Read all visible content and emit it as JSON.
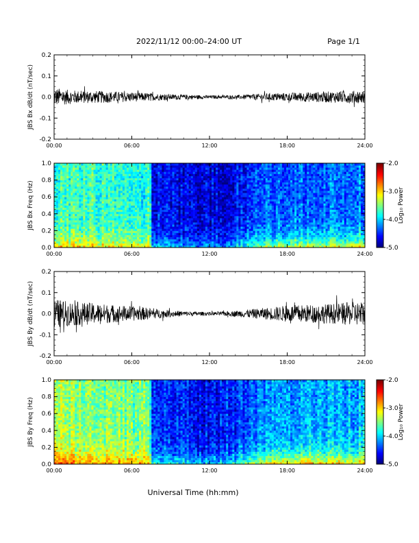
{
  "header": {
    "title": "2022/11/12  00:00–24:00 UT",
    "page": "Page 1/1"
  },
  "xlabel": "Universal Time (hh:mm)",
  "chart_data": [
    {
      "type": "line",
      "ylabel": "JBS Bx dB/dt (nT/sec)",
      "ylim": [
        -0.2,
        0.2
      ],
      "yticks": [
        "0.2",
        "0.1",
        "0.0",
        "-0.1",
        "-0.2"
      ],
      "xlim": [
        0,
        24
      ],
      "xticks": [
        "00:00",
        "06:00",
        "12:00",
        "18:00",
        "24:00"
      ],
      "x": [
        0,
        1,
        2,
        3,
        4,
        5,
        6,
        7,
        8,
        9,
        10,
        11,
        12,
        13,
        14,
        15,
        16,
        17,
        18,
        19,
        20,
        21,
        22,
        23,
        24
      ],
      "amplitude": [
        0.045,
        0.035,
        0.03,
        0.03,
        0.028,
        0.025,
        0.022,
        0.02,
        0.016,
        0.013,
        0.012,
        0.01,
        0.008,
        0.008,
        0.009,
        0.012,
        0.016,
        0.018,
        0.02,
        0.022,
        0.024,
        0.026,
        0.028,
        0.03,
        0.03
      ]
    },
    {
      "type": "heatmap",
      "ylabel": "JBS Bx Freq (Hz)",
      "ylim": [
        0.0,
        1.0
      ],
      "yticks": [
        "1.0",
        "0.8",
        "0.6",
        "0.4",
        "0.2",
        "0.0"
      ],
      "xlim": [
        0,
        24
      ],
      "xticks": [
        "00:00",
        "06:00",
        "12:00",
        "18:00",
        "24:00"
      ],
      "colorbar": {
        "label": "Log₁₀ Power",
        "range": [
          -5.0,
          -2.0
        ],
        "ticks": [
          "-2.0",
          "-3.0",
          "-4.0",
          "-5.0"
        ]
      },
      "x": [
        0,
        2,
        4,
        6,
        7.4,
        7.6,
        10,
        12,
        14,
        16,
        18,
        20,
        22,
        24
      ],
      "background_level": [
        -3.7,
        -3.7,
        -3.75,
        -3.75,
        -3.8,
        -4.6,
        -4.7,
        -4.75,
        -4.65,
        -4.4,
        -4.35,
        -4.3,
        -4.3,
        -4.3
      ],
      "low_freq_level": [
        -2.9,
        -3.0,
        -3.0,
        -3.0,
        -3.1,
        -3.9,
        -4.1,
        -4.2,
        -3.9,
        -3.4,
        -3.2,
        -3.1,
        -3.1,
        -3.0
      ]
    },
    {
      "type": "line",
      "ylabel": "JBS By dB/dt (nT/sec)",
      "ylim": [
        -0.2,
        0.2
      ],
      "yticks": [
        "0.2",
        "0.1",
        "0.0",
        "-0.1",
        "-0.2"
      ],
      "xlim": [
        0,
        24
      ],
      "xticks": [
        "00:00",
        "06:00",
        "12:00",
        "18:00",
        "24:00"
      ],
      "x": [
        0,
        1,
        2,
        3,
        4,
        5,
        6,
        7,
        8,
        9,
        10,
        11,
        12,
        13,
        14,
        15,
        16,
        17,
        18,
        19,
        20,
        21,
        22,
        23,
        24
      ],
      "amplitude": [
        0.07,
        0.06,
        0.055,
        0.05,
        0.045,
        0.04,
        0.035,
        0.03,
        0.022,
        0.016,
        0.012,
        0.01,
        0.008,
        0.01,
        0.014,
        0.02,
        0.026,
        0.032,
        0.04,
        0.042,
        0.044,
        0.046,
        0.05,
        0.055,
        0.06
      ]
    },
    {
      "type": "heatmap",
      "ylabel": "JBS By Freq (Hz)",
      "ylim": [
        0.0,
        1.0
      ],
      "yticks": [
        "1.0",
        "0.8",
        "0.6",
        "0.4",
        "0.2",
        "0.0"
      ],
      "xlim": [
        0,
        24
      ],
      "xticks": [
        "00:00",
        "06:00",
        "12:00",
        "18:00",
        "24:00"
      ],
      "colorbar": {
        "label": "Log₁₀ Power",
        "range": [
          -5.0,
          -2.0
        ],
        "ticks": [
          "-2.0",
          "-3.0",
          "-4.0",
          "-5.0"
        ]
      },
      "x": [
        0,
        2,
        4,
        6,
        7.4,
        7.6,
        10,
        12,
        14,
        16,
        18,
        20,
        22,
        24
      ],
      "background_level": [
        -3.4,
        -3.45,
        -3.5,
        -3.55,
        -3.6,
        -4.5,
        -4.6,
        -4.65,
        -4.5,
        -4.25,
        -4.15,
        -4.1,
        -4.1,
        -4.1
      ],
      "low_freq_level": [
        -2.6,
        -2.7,
        -2.75,
        -2.8,
        -2.9,
        -3.7,
        -3.9,
        -4.0,
        -3.7,
        -3.1,
        -2.9,
        -2.8,
        -2.9,
        -2.9
      ]
    }
  ]
}
